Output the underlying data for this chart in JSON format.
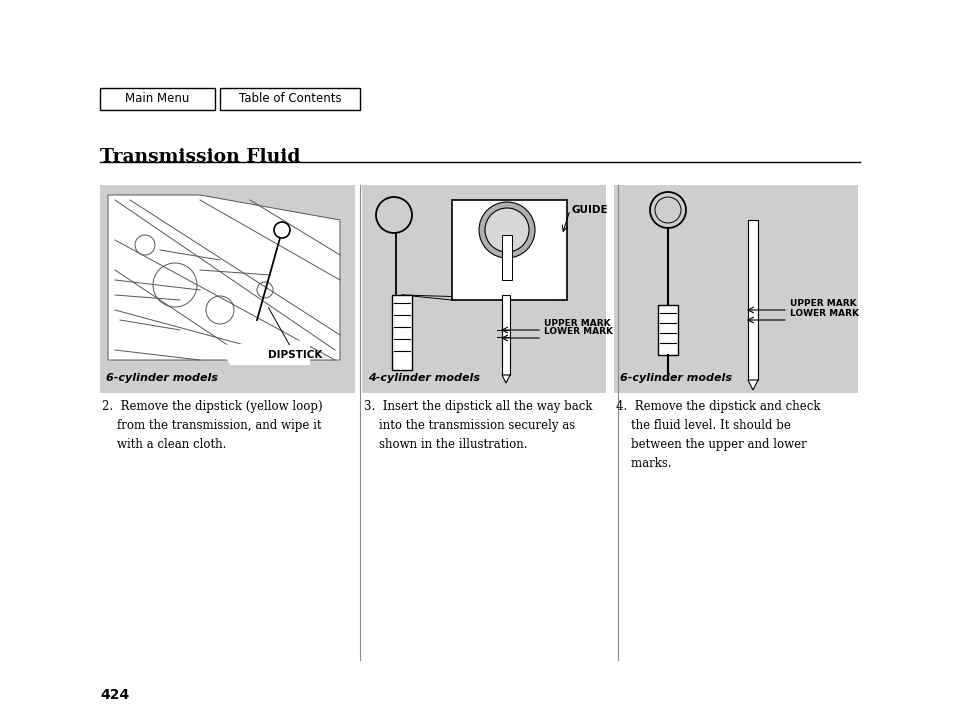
{
  "bg_color": "#ffffff",
  "page_number": "424",
  "title": "Transmission Fluid",
  "nav_buttons": [
    "Main Menu",
    "Table of Contents"
  ],
  "panel_bg": "#cecece",
  "panel_captions": [
    "6-cylinder models",
    "4-cylinder models",
    "6-cylinder models"
  ],
  "text2": "2.  Remove the dipstick (yellow loop)\n    from the transmission, and wipe it\n    with a clean cloth.",
  "text3": "3.  Insert the dipstick all the way back\n    into the transmission securely as\n    shown in the illustration.",
  "text4": "4.  Remove the dipstick and check\n    the fluid level. It should be\n    between the upper and lower\n    marks.",
  "divider_color": "#888888",
  "line_color": "#333333"
}
